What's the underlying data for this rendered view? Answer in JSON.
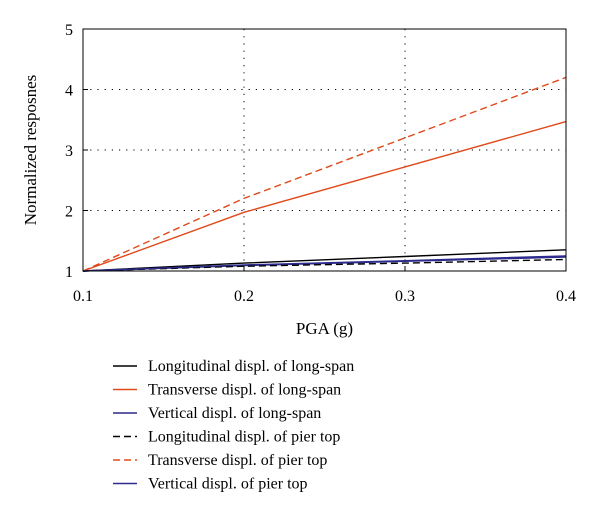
{
  "chart_data": {
    "type": "line",
    "title": "",
    "xlabel": "PGA (g)",
    "ylabel": "Normalized resposnes",
    "xlim": [
      0.1,
      0.4
    ],
    "ylim": [
      1,
      5
    ],
    "xticks": [
      "0.1",
      "0.2",
      "0.3",
      "0.4"
    ],
    "yticks": [
      "1",
      "2",
      "3",
      "4",
      "5"
    ],
    "grid": true,
    "legend_position": "below",
    "x": [
      0.1,
      0.2,
      0.3,
      0.4
    ],
    "series": [
      {
        "name": "Longitudinal displ. of long-span",
        "values": [
          1.0,
          1.13,
          1.24,
          1.35
        ],
        "color": "#000000",
        "dash": "solid"
      },
      {
        "name": "Transverse displ. of long-span",
        "values": [
          1.0,
          1.97,
          2.72,
          3.47
        ],
        "color": "#e04a1a",
        "dash": "solid"
      },
      {
        "name": "Vertical displ. of long-span",
        "values": [
          1.0,
          1.09,
          1.16,
          1.23
        ],
        "color": "#2c2a8c",
        "dash": "solid"
      },
      {
        "name": "Longitudinal displ. of pier top",
        "values": [
          1.0,
          1.08,
          1.13,
          1.19
        ],
        "color": "#000000",
        "dash": "dashed"
      },
      {
        "name": "Transverse displ. of pier top",
        "values": [
          1.0,
          2.2,
          3.2,
          4.2
        ],
        "color": "#e04a1a",
        "dash": "dashed"
      },
      {
        "name": "Vertical displ. of pier top",
        "values": [
          1.0,
          1.1,
          1.17,
          1.25
        ],
        "color": "#2c2a8c",
        "dash": "solid"
      }
    ]
  }
}
